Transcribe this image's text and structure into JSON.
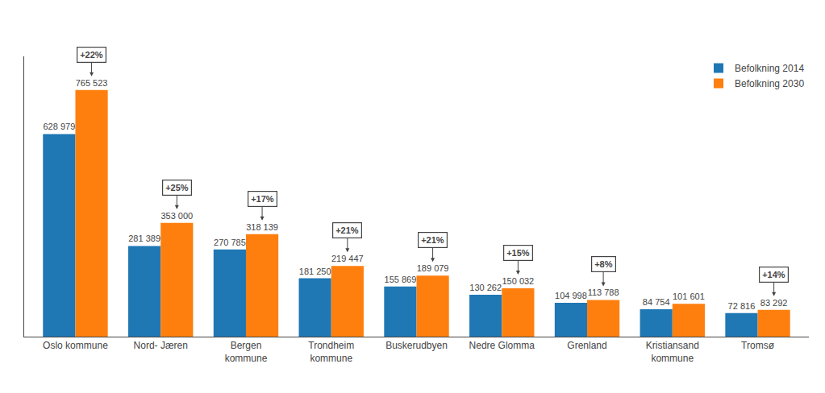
{
  "chart_data": {
    "type": "bar",
    "categories": [
      "Oslo kommune",
      "Nord- Jæren",
      "Bergen\nkommune",
      "Trondheim\nkommune",
      "Buskerudbyen",
      "Nedre Glomma",
      "Grenland",
      "Kristiansand\nkommune",
      "Tromsø"
    ],
    "series": [
      {
        "name": "Befolkning 2014",
        "values": [
          628979,
          281389,
          270785,
          181250,
          155869,
          130262,
          104998,
          84754,
          72816
        ],
        "value_labels": [
          "628 979",
          "281 389",
          "270 785",
          "181 250",
          "155 869",
          "130 262",
          "104 998",
          "84 754",
          "72 816"
        ]
      },
      {
        "name": "Befolkning 2030",
        "values": [
          765523,
          353000,
          318139,
          219447,
          189079,
          150032,
          113788,
          101601,
          83292
        ],
        "value_labels": [
          "765 523",
          "353 000",
          "318 139",
          "219 447",
          "189 079",
          "150 032",
          "113 788",
          "101 601",
          "83 292"
        ]
      }
    ],
    "annotations": [
      {
        "category": "Oslo kommune",
        "series": "Befolkning 2030",
        "text": "+22%"
      },
      {
        "category": "Nord- Jæren",
        "series": "Befolkning 2030",
        "text": "+25%"
      },
      {
        "category": "Bergen\nkommune",
        "series": "Befolkning 2030",
        "text": "+17%"
      },
      {
        "category": "Trondheim\nkommune",
        "series": "Befolkning 2030",
        "text": "+21%"
      },
      {
        "category": "Buskerudbyen",
        "series": "Befolkning 2030",
        "text": "+21%"
      },
      {
        "category": "Nedre Glomma",
        "series": "Befolkning 2030",
        "text": "+15%"
      },
      {
        "category": "Grenland",
        "series": "Befolkning 2030",
        "text": "+8%"
      },
      {
        "category": "Tromsø",
        "series": "Befolkning 2030",
        "text": "+14%"
      }
    ],
    "ylim": [
      0,
      870000
    ],
    "yticks": [],
    "grid": false,
    "legend": "upper right",
    "data_labels": true,
    "tick_labels": "x"
  }
}
